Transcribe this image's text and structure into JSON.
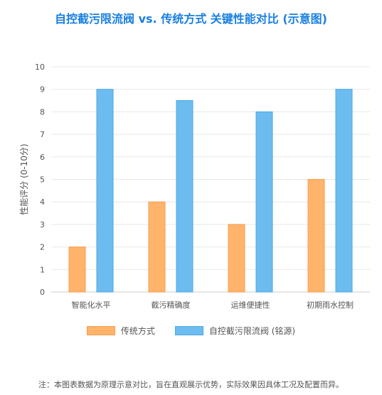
{
  "chart_data": {
    "type": "bar",
    "title": "自控截污限流阀 vs. 传统方式 关键性能对比 (示意图)",
    "xlabel": "",
    "ylabel": "性能评分 (0-10分)",
    "categories": [
      "智能化水平",
      "截污精确度",
      "运维便捷性",
      "初期雨水控制"
    ],
    "series": [
      {
        "name": "传统方式",
        "values": [
          2,
          4,
          3,
          5
        ],
        "color": "#ffb36b"
      },
      {
        "name": "自控截污限流阀 (铭源)",
        "values": [
          9,
          8.5,
          8,
          9
        ],
        "color": "#6cbcf0"
      }
    ],
    "ylim": [
      0,
      10
    ],
    "yticks": [
      "0",
      "1",
      "2",
      "3",
      "4",
      "5",
      "6",
      "7",
      "8",
      "9",
      "10"
    ],
    "grid": true,
    "legend_position": "bottom"
  },
  "footnote": "注：本图表数据为原理示意对比，旨在直观展示优势，实际效果因具体工况及配置而异。"
}
